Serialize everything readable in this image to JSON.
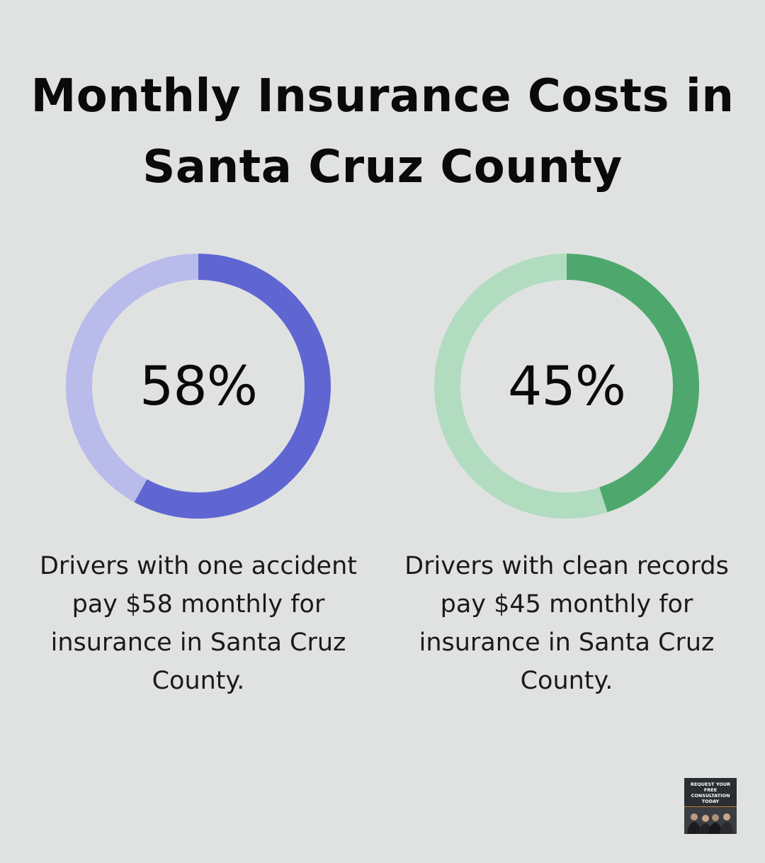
{
  "chart_data": [
    {
      "type": "pie",
      "variant": "donut",
      "value": 58,
      "display": "58%",
      "caption": "Drivers with one accident pay $58 monthly for insurance in Santa Cruz County.",
      "colors": {
        "filled": "#6066d1",
        "track": "#b9bbea"
      }
    },
    {
      "type": "pie",
      "variant": "donut",
      "value": 45,
      "display": "45%",
      "caption": "Drivers with clean records pay $45 monthly for insurance in Santa Cruz County.",
      "colors": {
        "filled": "#4ea86d",
        "track": "#b1dcc0"
      }
    }
  ],
  "title": "Monthly Insurance Costs in Santa Cruz County",
  "badge": {
    "text": "REQUEST YOUR FREE CONSULTATION TODAY",
    "colors": {
      "background": "#2a2d31",
      "accent": "#c27a35"
    }
  },
  "colors": {
    "background": "#e0e2e1"
  }
}
